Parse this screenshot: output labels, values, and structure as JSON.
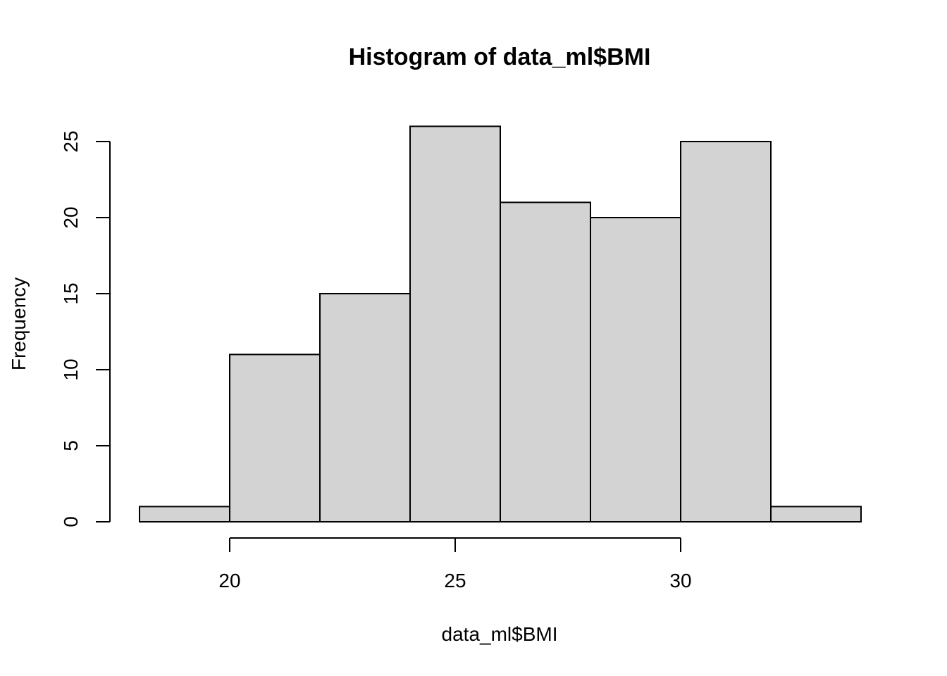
{
  "chart_data": {
    "type": "bar",
    "title": "Histogram of data_ml$BMI",
    "xlabel": "data_ml$BMI",
    "ylabel": "Frequency",
    "bins": [
      {
        "start": 18,
        "end": 20,
        "count": 1
      },
      {
        "start": 20,
        "end": 22,
        "count": 11
      },
      {
        "start": 22,
        "end": 24,
        "count": 15
      },
      {
        "start": 24,
        "end": 26,
        "count": 26
      },
      {
        "start": 26,
        "end": 28,
        "count": 21
      },
      {
        "start": 28,
        "end": 30,
        "count": 20
      },
      {
        "start": 30,
        "end": 32,
        "count": 25
      },
      {
        "start": 32,
        "end": 34,
        "count": 1
      }
    ],
    "x_ticks": [
      20,
      25,
      30
    ],
    "y_ticks": [
      0,
      5,
      10,
      15,
      20,
      25
    ],
    "xlim": [
      18,
      34
    ],
    "ylim": [
      0,
      26
    ],
    "grid": false,
    "bar_color": "#d3d3d3",
    "edge_color": "#000000"
  }
}
